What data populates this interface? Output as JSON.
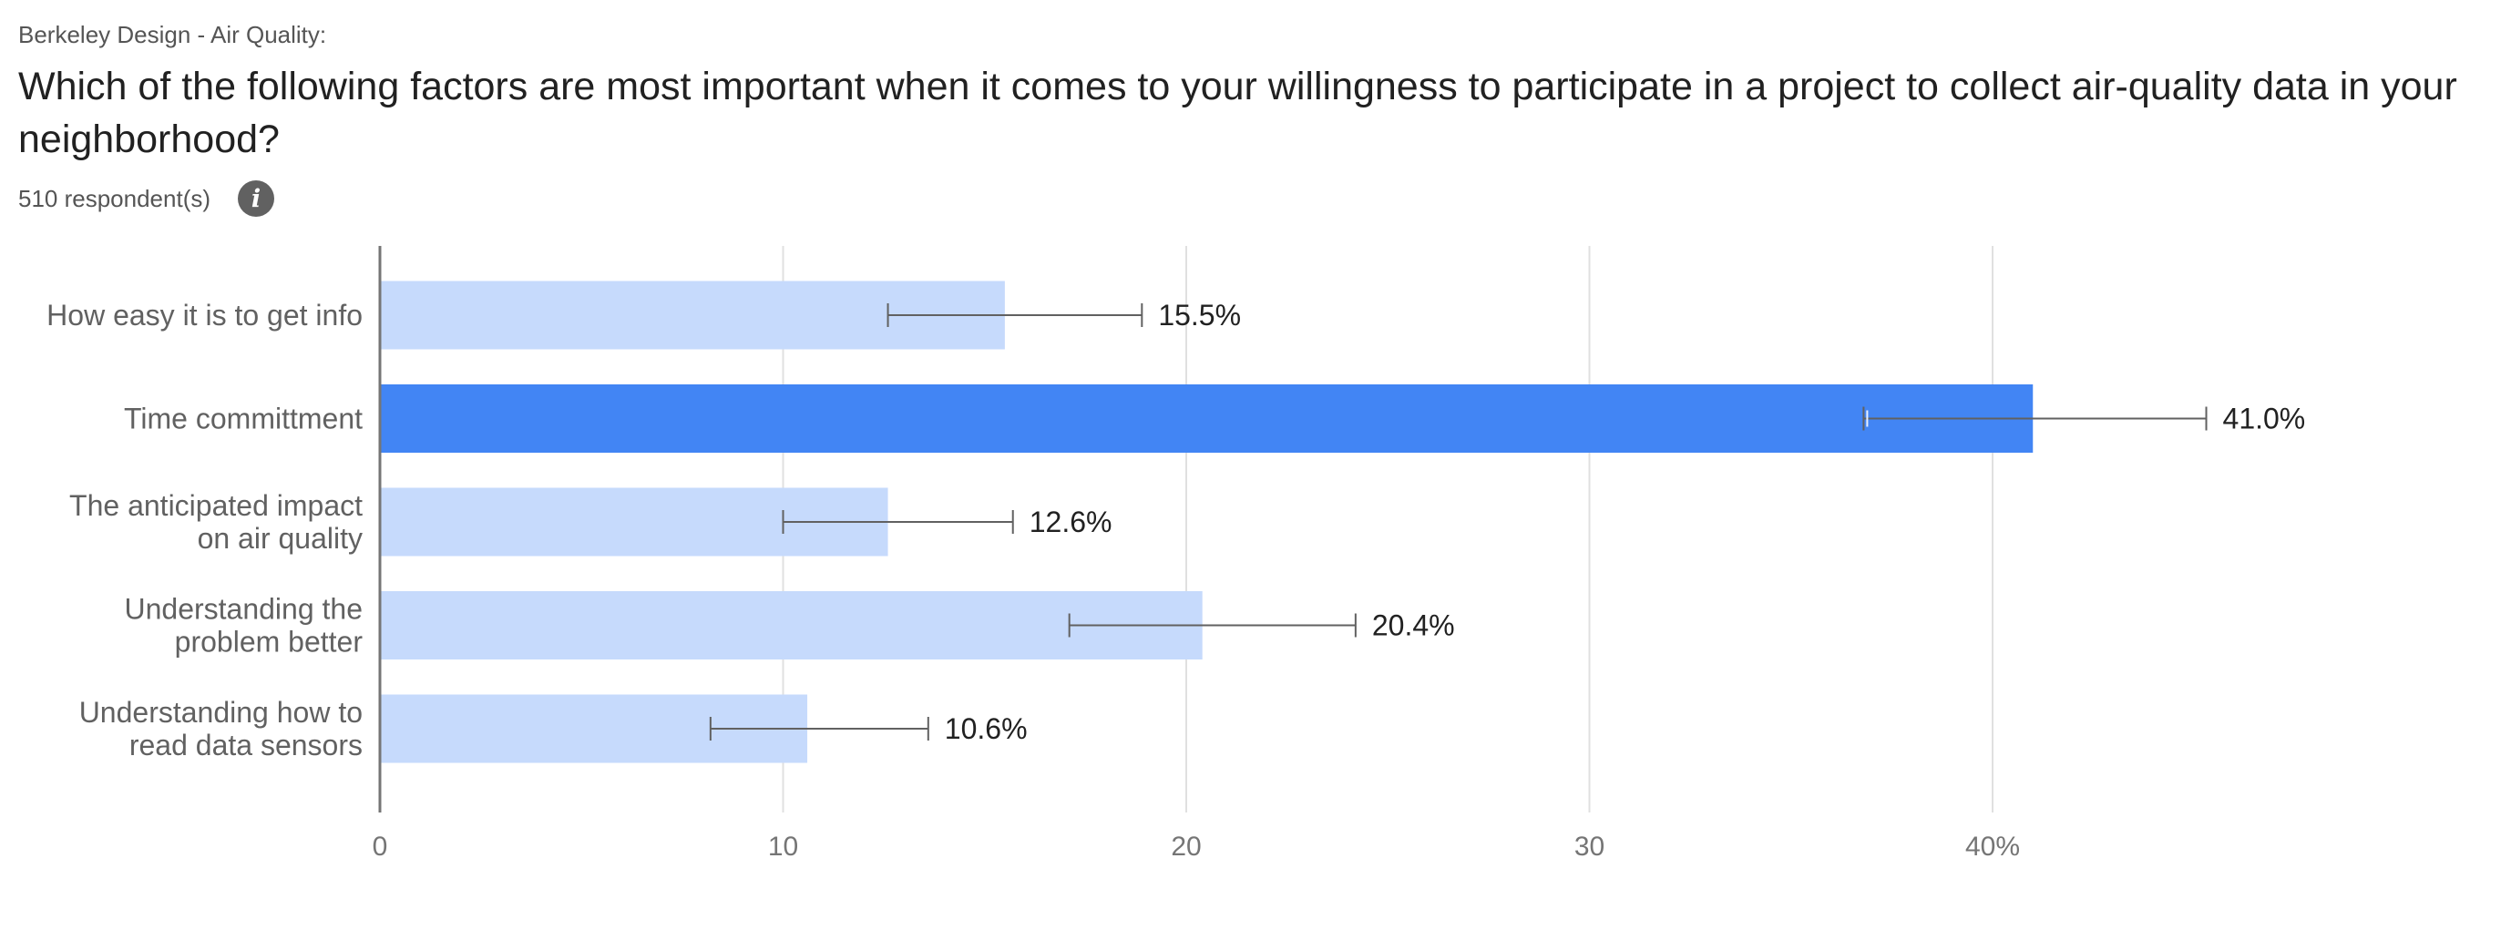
{
  "header": {
    "survey_name": "Berkeley Design - Air Quality:",
    "question": "Which of the following factors are most important when it comes to your willingness to participate in a project to collect air-quality data in your neighborhood?",
    "respondents": "510 respondent(s)",
    "info_icon": "info-icon"
  },
  "colors": {
    "bar": "#c6dafc",
    "highlight_bar": "#4285f4",
    "error_bar": "#616161",
    "axis": "#757575",
    "grid": "#e0e0e0",
    "label_text": "#616161",
    "value_text": "#212121"
  },
  "chart_data": {
    "type": "bar",
    "orientation": "horizontal",
    "categories": [
      [
        "How easy it is to get info"
      ],
      [
        "Time committment"
      ],
      [
        "The anticipated impact",
        "on air quality"
      ],
      [
        "Understanding the",
        "problem better"
      ],
      [
        "Understanding how to",
        "read data sensors"
      ]
    ],
    "values": [
      15.5,
      41.0,
      12.6,
      20.4,
      10.6
    ],
    "value_labels": [
      "15.5%",
      "41.0%",
      "12.6%",
      "20.4%",
      "10.6%"
    ],
    "error_low": [
      12.6,
      36.8,
      10.0,
      17.1,
      8.2
    ],
    "error_high": [
      18.9,
      45.3,
      15.7,
      24.2,
      13.6
    ],
    "highlighted_index": 1,
    "xlim": [
      0,
      50
    ],
    "x_ticks": [
      0,
      10,
      20,
      30,
      40
    ],
    "x_tick_labels": [
      "0",
      "10",
      "20",
      "30",
      "40%"
    ],
    "grid": true,
    "legend": "none"
  }
}
